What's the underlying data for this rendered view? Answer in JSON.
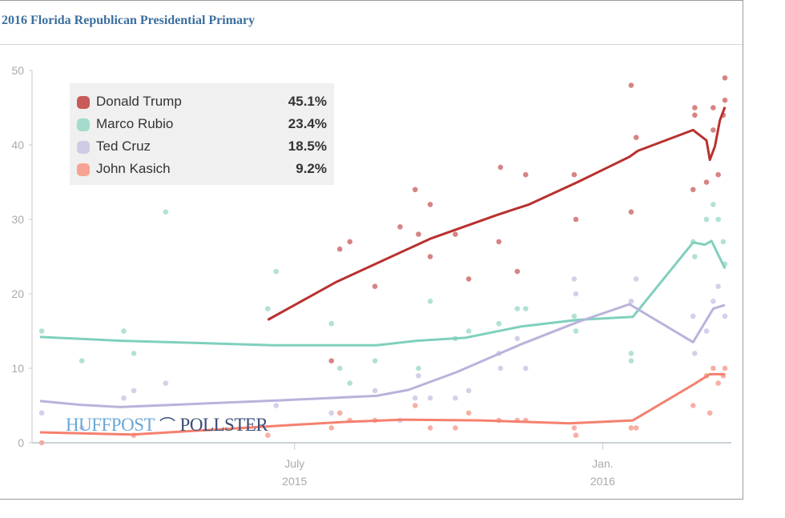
{
  "header": {
    "title": "2016 Florida Republican Presidential Primary"
  },
  "logo": {
    "left": "HUFFPOST",
    "right": "POLLSTER"
  },
  "chart_data": {
    "type": "line",
    "title": "2016 Florida Republican Presidential Primary",
    "x_unit": "days since 2015-01-01",
    "xlim": [
      29,
      438
    ],
    "ylim": [
      0,
      50
    ],
    "yticks": [
      0,
      10,
      20,
      30,
      40,
      50
    ],
    "xticks": [
      {
        "x": 181,
        "label1": "July",
        "label2": "2015"
      },
      {
        "x": 365,
        "label1": "Jan.",
        "label2": "2016"
      }
    ],
    "legend_position": "top-left",
    "series": [
      {
        "name": "Donald Trump",
        "latest": "45.1%",
        "color": "#b8312f",
        "dot_color": "#cf6f6d",
        "line": [
          [
            165,
            16.5
          ],
          [
            206,
            21.6
          ],
          [
            262,
            27.4
          ],
          [
            302,
            30.6
          ],
          [
            321,
            32
          ],
          [
            350,
            35
          ],
          [
            381,
            38.4
          ],
          [
            386,
            39.2
          ],
          [
            419,
            42
          ],
          [
            427,
            40.6
          ],
          [
            429,
            38
          ],
          [
            432,
            39.8
          ],
          [
            435,
            43.3
          ],
          [
            438,
            45.1
          ]
        ],
        "points": [
          [
            203,
            11
          ],
          [
            208,
            26
          ],
          [
            214,
            27
          ],
          [
            229,
            21
          ],
          [
            244,
            29
          ],
          [
            253,
            34
          ],
          [
            255,
            28
          ],
          [
            262,
            32
          ],
          [
            262,
            25
          ],
          [
            277,
            28
          ],
          [
            285,
            22
          ],
          [
            303,
            27
          ],
          [
            304,
            37
          ],
          [
            314,
            23
          ],
          [
            319,
            36
          ],
          [
            348,
            36
          ],
          [
            349,
            30
          ],
          [
            382,
            48
          ],
          [
            382,
            31
          ],
          [
            385,
            41
          ],
          [
            419,
            34
          ],
          [
            420,
            45
          ],
          [
            420,
            44
          ],
          [
            427,
            35
          ],
          [
            431,
            45
          ],
          [
            431,
            42
          ],
          [
            434,
            36
          ],
          [
            438,
            49
          ],
          [
            438,
            46
          ],
          [
            437,
            44
          ]
        ]
      },
      {
        "name": "Marco Rubio",
        "latest": "23.4%",
        "color": "#7fd0bd",
        "dot_color": "#a5dccf",
        "line": [
          [
            29,
            14.2
          ],
          [
            77,
            13.7
          ],
          [
            168,
            13.1
          ],
          [
            230,
            13.1
          ],
          [
            254,
            13.7
          ],
          [
            283,
            14.1
          ],
          [
            316,
            15.6
          ],
          [
            350,
            16.5
          ],
          [
            383,
            16.9
          ],
          [
            419,
            26.9
          ],
          [
            426,
            26.6
          ],
          [
            430,
            27.1
          ],
          [
            435,
            24.8
          ],
          [
            438,
            23.4
          ]
        ],
        "points": [
          [
            30,
            15
          ],
          [
            54,
            11
          ],
          [
            79,
            15
          ],
          [
            85,
            12
          ],
          [
            104,
            31
          ],
          [
            165,
            18
          ],
          [
            170,
            23
          ],
          [
            203,
            16
          ],
          [
            208,
            10
          ],
          [
            214,
            8
          ],
          [
            229,
            11
          ],
          [
            255,
            10
          ],
          [
            262,
            19
          ],
          [
            277,
            14
          ],
          [
            285,
            15
          ],
          [
            303,
            16
          ],
          [
            314,
            18
          ],
          [
            319,
            18
          ],
          [
            348,
            17
          ],
          [
            349,
            15
          ],
          [
            382,
            12
          ],
          [
            382,
            11
          ],
          [
            419,
            27
          ],
          [
            420,
            25
          ],
          [
            427,
            30
          ],
          [
            431,
            32
          ],
          [
            434,
            30
          ],
          [
            437,
            27
          ],
          [
            438,
            24
          ]
        ]
      },
      {
        "name": "Ted Cruz",
        "latest": "18.5%",
        "color": "#b9b3db",
        "dot_color": "#cdc8e6",
        "line": [
          [
            29,
            5.6
          ],
          [
            53,
            5.1
          ],
          [
            77,
            4.8
          ],
          [
            173,
            5.7
          ],
          [
            230,
            6.3
          ],
          [
            249,
            7.1
          ],
          [
            278,
            9.5
          ],
          [
            316,
            13.2
          ],
          [
            350,
            16.2
          ],
          [
            381,
            18.6
          ],
          [
            419,
            13.5
          ],
          [
            431,
            18
          ],
          [
            438,
            18.5
          ]
        ],
        "points": [
          [
            30,
            4
          ],
          [
            54,
            2
          ],
          [
            79,
            6
          ],
          [
            85,
            7
          ],
          [
            104,
            8
          ],
          [
            170,
            5
          ],
          [
            203,
            4
          ],
          [
            229,
            7
          ],
          [
            244,
            3
          ],
          [
            253,
            6
          ],
          [
            255,
            9
          ],
          [
            262,
            6
          ],
          [
            277,
            6
          ],
          [
            285,
            7
          ],
          [
            303,
            12
          ],
          [
            304,
            10
          ],
          [
            314,
            14
          ],
          [
            319,
            10
          ],
          [
            348,
            22
          ],
          [
            349,
            20
          ],
          [
            382,
            19
          ],
          [
            385,
            22
          ],
          [
            419,
            17
          ],
          [
            420,
            12
          ],
          [
            427,
            15
          ],
          [
            431,
            19
          ],
          [
            434,
            21
          ],
          [
            438,
            17
          ]
        ]
      },
      {
        "name": "John Kasich",
        "latest": "9.2%",
        "color": "#f5806e",
        "dot_color": "#f7a194",
        "line": [
          [
            29,
            1.4
          ],
          [
            84,
            1.1
          ],
          [
            173,
            2.3
          ],
          [
            211,
            2.8
          ],
          [
            245,
            3.1
          ],
          [
            292,
            3.0
          ],
          [
            345,
            2.6
          ],
          [
            383,
            3.0
          ],
          [
            419,
            7.8
          ],
          [
            429,
            9.2
          ],
          [
            438,
            9.2
          ]
        ],
        "points": [
          [
            30,
            0
          ],
          [
            85,
            1
          ],
          [
            165,
            1
          ],
          [
            203,
            2
          ],
          [
            208,
            4
          ],
          [
            214,
            3
          ],
          [
            229,
            3
          ],
          [
            253,
            5
          ],
          [
            262,
            2
          ],
          [
            277,
            2
          ],
          [
            285,
            4
          ],
          [
            303,
            3
          ],
          [
            314,
            3
          ],
          [
            319,
            3
          ],
          [
            348,
            2
          ],
          [
            349,
            1
          ],
          [
            382,
            2
          ],
          [
            385,
            2
          ],
          [
            419,
            5
          ],
          [
            427,
            9
          ],
          [
            429,
            4
          ],
          [
            431,
            10
          ],
          [
            434,
            8
          ],
          [
            438,
            10
          ],
          [
            437,
            9
          ]
        ]
      }
    ]
  }
}
